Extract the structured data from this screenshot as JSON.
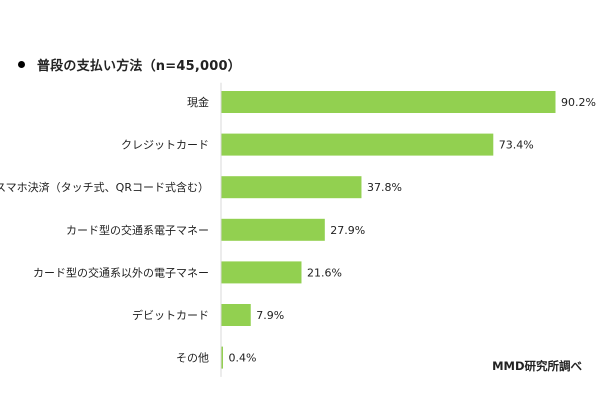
{
  "chart_data": {
    "type": "bar",
    "orientation": "horizontal",
    "title": "普段の支払い方法（n=45,000）",
    "source": "MMD研究所調べ",
    "categories": [
      "現金",
      "クレジットカード",
      "スマホ決済（タッチ式、QRコード式含む）",
      "カード型の交通系電子マネー",
      "カード型の交通系以外の電子マネー",
      "デビットカード",
      "その他"
    ],
    "values": [
      90.2,
      73.4,
      37.8,
      27.9,
      21.6,
      7.9,
      0.4
    ],
    "value_labels": [
      "90.2%",
      "73.4%",
      "37.8%",
      "27.9%",
      "21.6%",
      "7.9%",
      "0.4%"
    ],
    "unit": "%",
    "xlim": [
      0,
      100
    ],
    "grid": false,
    "legend": "none",
    "bar_color": "#92d050"
  }
}
